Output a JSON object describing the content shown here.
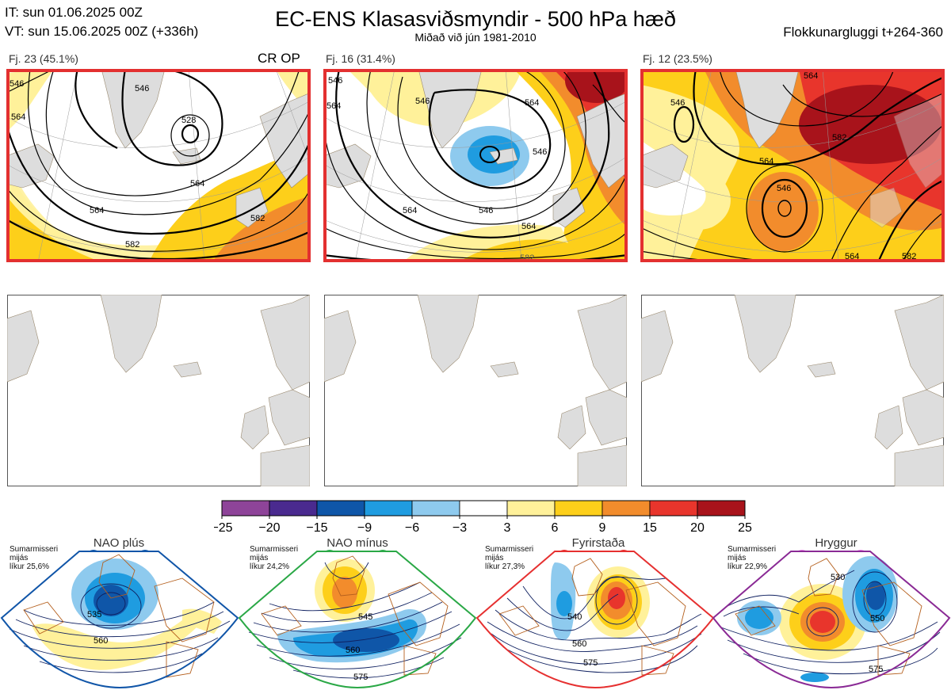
{
  "header": {
    "init_time": "IT: sun 01.06.2025 00Z",
    "valid_time": "VT: sun 15.06.2025 00Z  (+336h)",
    "title": "EC-ENS Klasasviðsmyndir - 500 hPa hæð",
    "subtitle": "Miðað við jún 1981-2010",
    "window": "Flokkunargluggi t+264-360"
  },
  "clusters": [
    {
      "label": "Fj. 23 (45.1%)",
      "members": 23,
      "percent": 45.1,
      "tag": "CR OP",
      "contours": [
        "528",
        "546",
        "564",
        "564",
        "582",
        "582",
        "546",
        "564"
      ]
    },
    {
      "label": "Fj. 16 (31.4%)",
      "members": 16,
      "percent": 31.4,
      "tag": "",
      "contours": [
        "546",
        "564",
        "546",
        "564",
        "546",
        "564",
        "582",
        "546",
        "564"
      ]
    },
    {
      "label": "Fj. 12 (23.5%)",
      "members": 12,
      "percent": 23.5,
      "tag": "",
      "contours": [
        "546",
        "564",
        "564",
        "582",
        "546",
        "564",
        "582"
      ]
    }
  ],
  "colorbar": {
    "ticks": [
      "−25",
      "−20",
      "−15",
      "−9",
      "−6",
      "−3",
      "3",
      "6",
      "9",
      "15",
      "20",
      "25"
    ],
    "colors": [
      "#8e4499",
      "#4a2a8f",
      "#0f56a8",
      "#1f9ce0",
      "#8ecaee",
      "#ffffff",
      "#fff19a",
      "#fdcf1a",
      "#f28c2c",
      "#e8352c",
      "#a8131b"
    ]
  },
  "regimes": [
    {
      "name": "NAO plús",
      "note_lines": [
        "Sumarmisseri",
        "mijás",
        "líkur 25,6%"
      ],
      "probability": 25.6,
      "color": "#1055a8",
      "dot": "#0f56a8",
      "labels": [
        "535",
        "560"
      ]
    },
    {
      "name": "NAO mínus",
      "note_lines": [
        "Sumarmisseri",
        "mijás",
        "líkur 24,2%"
      ],
      "probability": 24.2,
      "color": "#2aa846",
      "dot": "#27ad4a",
      "labels": [
        "545",
        "560",
        "575"
      ]
    },
    {
      "name": "Fyrirstaða",
      "note_lines": [
        "Sumarmisseri",
        "mijás",
        "líkur 27,3%"
      ],
      "probability": 27.3,
      "color": "#e63030",
      "dot": "#e82a2a",
      "labels": [
        "540",
        "560",
        "575"
      ]
    },
    {
      "name": "Hryggur",
      "note_lines": [
        "Sumarmisseri",
        "mijás",
        "líkur 22,9%"
      ],
      "probability": 22.9,
      "color": "#8a2a95",
      "dot": "#ee7ae8",
      "labels": [
        "530",
        "550",
        "575"
      ]
    }
  ]
}
